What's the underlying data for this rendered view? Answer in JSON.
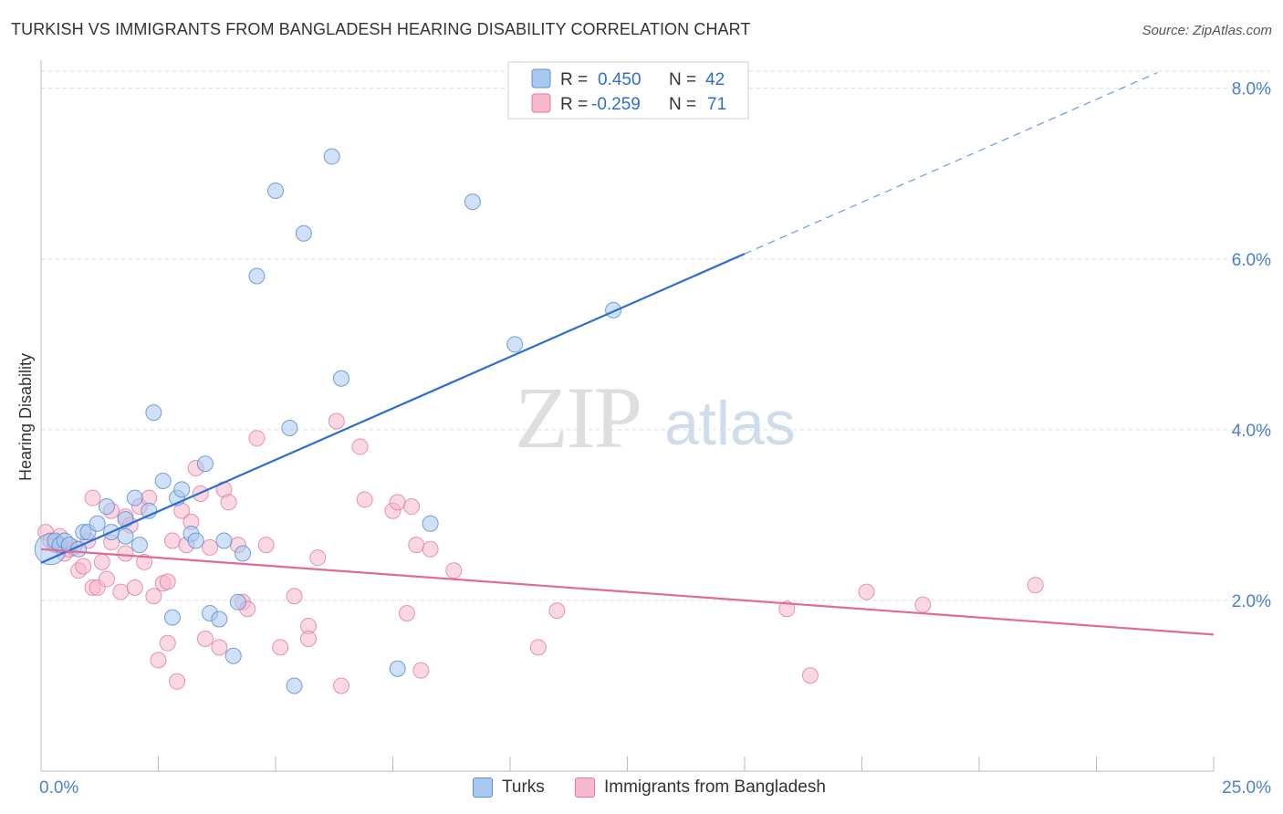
{
  "title": "TURKISH VS IMMIGRANTS FROM BANGLADESH HEARING DISABILITY CORRELATION CHART",
  "source": "Source: ZipAtlas.com",
  "watermark": {
    "zip": "ZIP",
    "atlas": "atlas"
  },
  "colors": {
    "turks_fill": "#a9c8f0",
    "turks_stroke": "#5d8fd0",
    "turks_line": "#2a6fd0",
    "bang_fill": "#f6b8cc",
    "bang_stroke": "#e07a9e",
    "bang_line": "#e06a96",
    "axis_label": "#4a7fd0",
    "grid": "#dddddd"
  },
  "legend": {
    "rows": [
      {
        "r_label": "R =",
        "r_value": "0.450",
        "n_label": "N =",
        "n_value": "42"
      },
      {
        "r_label": "R =",
        "r_value": "-0.259",
        "n_label": "N =",
        "n_value": "71"
      }
    ]
  },
  "chart_data": {
    "type": "scatter",
    "xlabel": "",
    "ylabel": "Hearing Disability",
    "xlim": [
      0,
      25
    ],
    "ylim": [
      0,
      8.2
    ],
    "x_tick_labels": [
      "0.0%",
      "25.0%"
    ],
    "y_ticks": [
      2,
      4,
      6,
      8
    ],
    "y_tick_labels": [
      "2.0%",
      "4.0%",
      "6.0%",
      "8.0%"
    ],
    "grid": true,
    "legend_position": "top-center",
    "series": [
      {
        "name": "Turks",
        "trend": {
          "x0": 0,
          "y0": 2.44,
          "x1": 15,
          "y1": 6.06,
          "dash_to_x": 23.8
        },
        "points": [
          [
            0.2,
            2.6,
            3
          ],
          [
            0.3,
            2.7,
            1
          ],
          [
            0.4,
            2.65,
            1
          ],
          [
            0.5,
            2.7,
            1
          ],
          [
            0.6,
            2.65,
            1
          ],
          [
            0.8,
            2.6,
            1
          ],
          [
            0.9,
            2.8,
            1
          ],
          [
            1.0,
            2.8,
            1
          ],
          [
            1.2,
            2.9,
            1
          ],
          [
            1.4,
            3.1,
            1
          ],
          [
            1.5,
            2.8,
            1
          ],
          [
            1.8,
            2.75,
            1
          ],
          [
            1.8,
            2.95,
            1
          ],
          [
            2.0,
            3.2,
            1
          ],
          [
            2.1,
            2.65,
            1
          ],
          [
            2.3,
            3.05,
            1
          ],
          [
            2.4,
            4.2,
            1
          ],
          [
            2.6,
            3.4,
            1
          ],
          [
            2.8,
            1.8,
            1
          ],
          [
            2.9,
            3.2,
            1
          ],
          [
            3.0,
            3.3,
            1
          ],
          [
            3.2,
            2.78,
            1
          ],
          [
            3.3,
            2.7,
            1
          ],
          [
            3.5,
            3.6,
            1
          ],
          [
            3.6,
            1.85,
            1
          ],
          [
            3.8,
            1.78,
            1
          ],
          [
            3.9,
            2.7,
            1
          ],
          [
            4.1,
            1.35,
            1
          ],
          [
            4.3,
            2.55,
            1
          ],
          [
            4.6,
            5.8,
            1
          ],
          [
            5.0,
            6.8,
            1
          ],
          [
            5.3,
            4.02,
            1
          ],
          [
            5.4,
            1.0,
            1
          ],
          [
            5.6,
            6.3,
            1
          ],
          [
            6.2,
            7.2,
            1
          ],
          [
            6.4,
            4.6,
            1
          ],
          [
            7.6,
            1.2,
            1
          ],
          [
            8.3,
            2.9,
            1
          ],
          [
            9.2,
            6.67,
            1
          ],
          [
            10.1,
            5.0,
            1
          ],
          [
            12.2,
            5.4,
            1
          ],
          [
            4.2,
            1.98,
            1
          ]
        ]
      },
      {
        "name": "Immigrants from Bangladesh",
        "trend": {
          "x0": 0,
          "y0": 2.6,
          "x1": 25,
          "y1": 1.6
        },
        "points": [
          [
            0.1,
            2.8,
            1
          ],
          [
            0.2,
            2.7,
            1
          ],
          [
            0.3,
            2.65,
            1
          ],
          [
            0.4,
            2.75,
            1
          ],
          [
            0.5,
            2.55,
            1
          ],
          [
            0.6,
            2.6,
            1
          ],
          [
            0.7,
            2.62,
            1
          ],
          [
            0.8,
            2.35,
            1
          ],
          [
            0.9,
            2.4,
            1
          ],
          [
            1.0,
            2.7,
            1
          ],
          [
            1.1,
            2.15,
            1
          ],
          [
            1.1,
            3.2,
            1
          ],
          [
            1.2,
            2.15,
            1
          ],
          [
            1.3,
            2.45,
            1
          ],
          [
            1.4,
            2.25,
            1
          ],
          [
            1.5,
            2.68,
            1
          ],
          [
            1.5,
            3.05,
            1
          ],
          [
            1.7,
            2.1,
            1
          ],
          [
            1.8,
            2.55,
            1
          ],
          [
            1.8,
            2.98,
            1
          ],
          [
            1.9,
            2.88,
            1
          ],
          [
            2.0,
            2.15,
            1
          ],
          [
            2.1,
            3.1,
            1
          ],
          [
            2.2,
            2.45,
            1
          ],
          [
            2.3,
            3.2,
            1
          ],
          [
            2.4,
            2.05,
            1
          ],
          [
            2.5,
            1.3,
            1
          ],
          [
            2.6,
            2.2,
            1
          ],
          [
            2.7,
            2.22,
            1
          ],
          [
            2.7,
            1.5,
            1
          ],
          [
            2.8,
            2.7,
            1
          ],
          [
            2.9,
            1.05,
            1
          ],
          [
            3.0,
            3.05,
            1
          ],
          [
            3.1,
            2.65,
            1
          ],
          [
            3.2,
            2.92,
            1
          ],
          [
            3.3,
            3.55,
            1
          ],
          [
            3.4,
            3.25,
            1
          ],
          [
            3.5,
            1.55,
            1
          ],
          [
            3.6,
            2.62,
            1
          ],
          [
            3.8,
            1.45,
            1
          ],
          [
            3.9,
            3.3,
            1
          ],
          [
            4.0,
            3.15,
            1
          ],
          [
            4.2,
            2.65,
            1
          ],
          [
            4.3,
            1.98,
            1
          ],
          [
            4.4,
            1.9,
            1
          ],
          [
            4.6,
            3.9,
            1
          ],
          [
            4.8,
            2.65,
            1
          ],
          [
            5.1,
            1.45,
            1
          ],
          [
            5.4,
            2.05,
            1
          ],
          [
            5.7,
            1.7,
            1
          ],
          [
            5.7,
            1.55,
            1
          ],
          [
            5.9,
            2.5,
            1
          ],
          [
            6.3,
            4.1,
            1
          ],
          [
            6.4,
            1.0,
            1
          ],
          [
            6.8,
            3.8,
            1
          ],
          [
            6.9,
            3.18,
            1
          ],
          [
            7.5,
            3.05,
            1
          ],
          [
            7.6,
            3.15,
            1
          ],
          [
            7.8,
            1.85,
            1
          ],
          [
            7.9,
            3.1,
            1
          ],
          [
            8.0,
            2.65,
            1
          ],
          [
            8.1,
            1.18,
            1
          ],
          [
            8.3,
            2.6,
            1
          ],
          [
            8.8,
            2.35,
            1
          ],
          [
            10.6,
            1.45,
            1
          ],
          [
            11.0,
            1.88,
            1
          ],
          [
            15.9,
            1.9,
            1
          ],
          [
            16.4,
            1.12,
            1
          ],
          [
            17.6,
            2.1,
            1
          ],
          [
            18.8,
            1.95,
            1
          ],
          [
            21.2,
            2.18,
            1
          ]
        ]
      }
    ]
  }
}
